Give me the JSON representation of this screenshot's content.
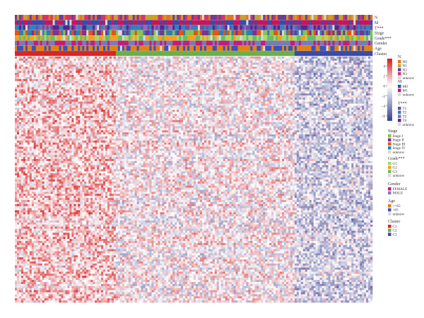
{
  "chart_data": {
    "type": "heatmap",
    "title": "",
    "xlabel": "",
    "ylabel": "",
    "colorbar": {
      "ticks": [
        "4",
        "2",
        "0",
        "−2",
        "−4",
        "−6"
      ],
      "tick_values": [
        4,
        2,
        0,
        -2,
        -4,
        -6
      ],
      "range": [
        -7,
        5.5
      ],
      "colors": [
        "#3a3d8f",
        "#ffffff",
        "#d7191c"
      ]
    },
    "annotation_tracks": [
      {
        "label": "N"
      },
      {
        "label": "M"
      },
      {
        "label": "T***"
      },
      {
        "label": "Stage"
      },
      {
        "label": "Grade***"
      },
      {
        "label": "Gender"
      },
      {
        "label": "Age"
      },
      {
        "label": "Cluster"
      }
    ],
    "cluster_fractions": [
      {
        "name": "C1",
        "fraction": 0.28
      },
      {
        "name": "C2",
        "fraction": 0.5
      },
      {
        "name": "C3",
        "fraction": 0.22
      }
    ],
    "cluster_expression_pattern": [
      {
        "cluster": "C1",
        "tendency": "high (red)"
      },
      {
        "cluster": "C2",
        "tendency": "mixed"
      },
      {
        "cluster": "C3",
        "tendency": "low (blue)"
      }
    ],
    "legends": [
      {
        "title": "N",
        "items": [
          {
            "label": "N0",
            "color": "#e8731a"
          },
          {
            "label": "N1",
            "color": "#c9a227"
          },
          {
            "label": "N2",
            "color": "#6a3d9a"
          },
          {
            "label": "N3",
            "color": "#d6336c"
          },
          {
            "label": "unknow",
            "color": "#d9d9d9"
          }
        ]
      },
      {
        "title": "M",
        "items": [
          {
            "label": "M0",
            "color": "#3b4aa8"
          },
          {
            "label": "M1",
            "color": "#c2185b"
          },
          {
            "label": "unknow",
            "color": "#d9d9d9"
          }
        ]
      },
      {
        "title": "T***",
        "items": [
          {
            "label": "T1",
            "color": "#6a51a3"
          },
          {
            "label": "T2",
            "color": "#3182bd"
          },
          {
            "label": "T3",
            "color": "#8c6bb1"
          },
          {
            "label": "T4",
            "color": "#54278f"
          },
          {
            "label": "unknow",
            "color": "#d9d9d9"
          }
        ]
      },
      {
        "title": "Stage",
        "items": [
          {
            "label": "Stage I",
            "color": "#8bc34a"
          },
          {
            "label": "Stage II",
            "color": "#7b3294"
          },
          {
            "label": "Stage III",
            "color": "#e6550d"
          },
          {
            "label": "Stage IV",
            "color": "#2c7fb8"
          },
          {
            "label": "unknow",
            "color": "#d9d9d9"
          }
        ]
      },
      {
        "title": "Grade***",
        "items": [
          {
            "label": "G1",
            "color": "#a6d96a"
          },
          {
            "label": "G2",
            "color": "#f4a020"
          },
          {
            "label": "G3",
            "color": "#66bd63"
          },
          {
            "label": "unknow",
            "color": "#d9d9d9"
          }
        ]
      },
      {
        "title": "Gender",
        "items": [
          {
            "label": "FEMALE",
            "color": "#c51b7d"
          },
          {
            "label": "MALE",
            "color": "#7a7ab8"
          }
        ]
      },
      {
        "title": "Age",
        "items": [
          {
            "label": "<=65",
            "color": "#e08214"
          },
          {
            "label": ">65",
            "color": "#3f51b5"
          },
          {
            "label": "unknow",
            "color": "#d9d9d9"
          }
        ]
      },
      {
        "title": "Cluster",
        "items": [
          {
            "label": "C1",
            "color": "#d62728"
          },
          {
            "label": "C2",
            "color": "#6ab04c"
          },
          {
            "label": "C3",
            "color": "#3b4aa8"
          }
        ]
      }
    ]
  }
}
